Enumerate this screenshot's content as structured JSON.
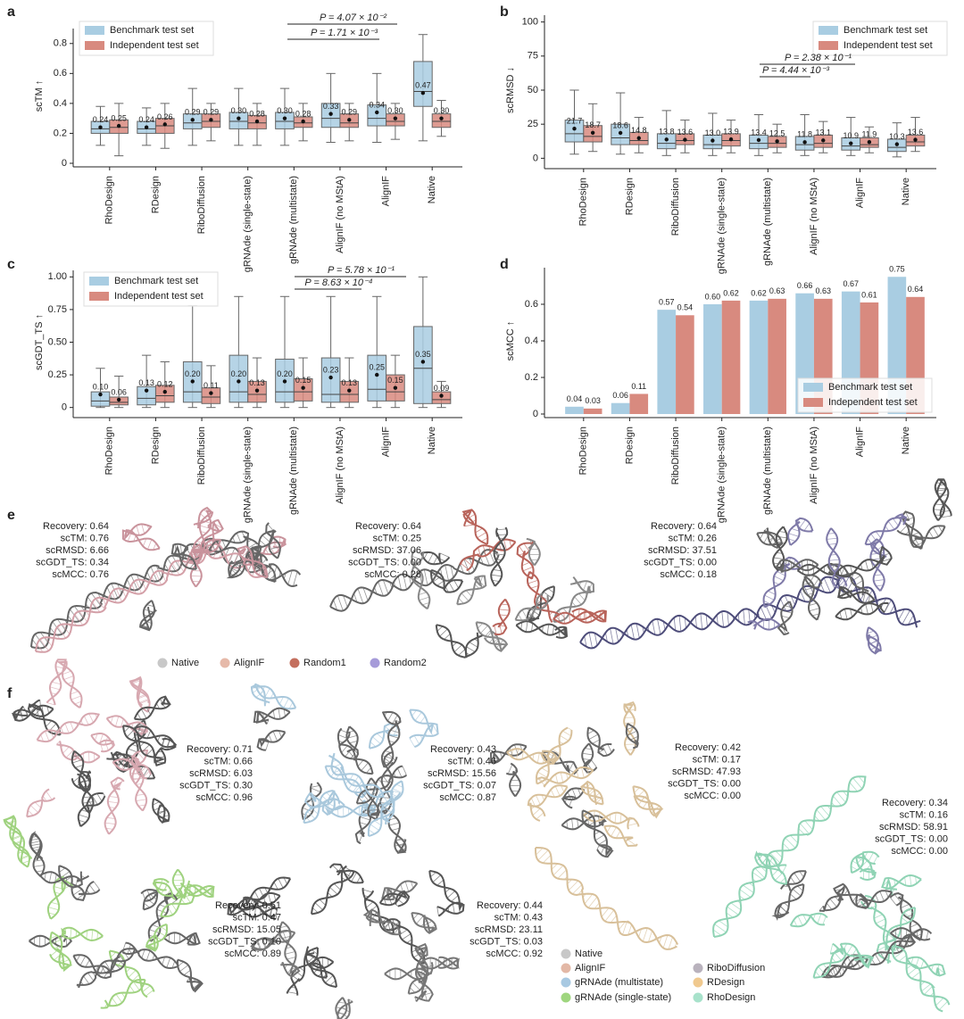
{
  "chart_data": [
    {
      "type": "box",
      "panel": "a",
      "ylabel": "scTM ↑",
      "categories": [
        "RhoDesign",
        "RDesign",
        "RiboDiffusion",
        "gRNAde (single-state)",
        "gRNAde (multistate)",
        "AlignIF (no MStA)",
        "AlignIF",
        "Native"
      ],
      "ylim": [
        0,
        0.9
      ],
      "yticks": [
        0,
        0.2,
        0.4,
        0.6,
        0.8
      ],
      "legend": "upper left",
      "annotations": [
        "P = 4.07 × 10⁻²",
        "P = 1.71 × 10⁻³"
      ],
      "series": [
        {
          "name": "Benchmark test set",
          "color": "#a9cde2",
          "values": [
            0.24,
            0.24,
            0.29,
            0.3,
            0.3,
            0.33,
            0.34,
            0.47
          ],
          "value_labels": [
            "0.24",
            "0.24",
            "0.29",
            "0.30",
            "0.30",
            "0.33",
            "0.34",
            "0.47"
          ],
          "q1": [
            0.2,
            0.2,
            0.23,
            0.23,
            0.23,
            0.24,
            0.25,
            0.38
          ],
          "median": [
            0.23,
            0.23,
            0.27,
            0.28,
            0.28,
            0.3,
            0.3,
            0.48
          ],
          "q3": [
            0.28,
            0.28,
            0.33,
            0.34,
            0.34,
            0.4,
            0.39,
            0.68
          ],
          "whisker_low": [
            0.12,
            0.12,
            0.12,
            0.12,
            0.12,
            0.14,
            0.14,
            0.15
          ],
          "whisker_high": [
            0.38,
            0.37,
            0.5,
            0.5,
            0.5,
            0.6,
            0.6,
            0.86
          ]
        },
        {
          "name": "Independent test set",
          "color": "#d88a7f",
          "values": [
            0.25,
            0.26,
            0.29,
            0.28,
            0.28,
            0.29,
            0.3,
            0.3
          ],
          "value_labels": [
            "0.25",
            "0.26",
            "0.29",
            "0.28",
            "0.28",
            "0.29",
            "0.30",
            "0.30"
          ],
          "q1": [
            0.2,
            0.2,
            0.24,
            0.23,
            0.24,
            0.24,
            0.25,
            0.24
          ],
          "median": [
            0.24,
            0.25,
            0.28,
            0.27,
            0.27,
            0.27,
            0.28,
            0.28
          ],
          "q3": [
            0.29,
            0.3,
            0.33,
            0.32,
            0.31,
            0.33,
            0.33,
            0.33
          ],
          "whisker_low": [
            0.05,
            0.1,
            0.15,
            0.12,
            0.15,
            0.15,
            0.16,
            0.18
          ],
          "whisker_high": [
            0.4,
            0.4,
            0.4,
            0.4,
            0.4,
            0.4,
            0.4,
            0.42
          ]
        }
      ]
    },
    {
      "type": "box",
      "panel": "b",
      "ylabel": "scRMSD ↓",
      "categories": [
        "RhoDesign",
        "RDesign",
        "RiboDiffusion",
        "gRNAde (single-state)",
        "gRNAde (multistate)",
        "AlignIF (no MStA)",
        "AlignIF",
        "Native"
      ],
      "ylim": [
        -5,
        105
      ],
      "yticks": [
        0,
        25,
        50,
        75,
        100
      ],
      "legend": "upper right",
      "annotations": [
        "P = 2.38 × 10⁻¹",
        "P = 4.44 × 10⁻³"
      ],
      "series": [
        {
          "name": "Benchmark test set",
          "color": "#a9cde2",
          "values": [
            21.7,
            18.6,
            13.8,
            13.0,
            13.4,
            11.8,
            10.9,
            10.3
          ],
          "value_labels": [
            "21.7",
            "18.6",
            "13.8",
            "13.0",
            "13.4",
            "11.8",
            "10.9",
            "10.3"
          ],
          "q1": [
            12,
            10,
            7,
            7,
            7,
            6,
            6,
            5
          ],
          "median": [
            18,
            15,
            11,
            10,
            11,
            10,
            9,
            8
          ],
          "q3": [
            28,
            25,
            18,
            17,
            17,
            16,
            15,
            14
          ],
          "whisker_low": [
            3,
            3,
            2,
            2,
            2,
            2,
            2,
            1
          ],
          "whisker_high": [
            50,
            48,
            35,
            33,
            32,
            32,
            30,
            26
          ]
        },
        {
          "name": "Independent test set",
          "color": "#d88a7f",
          "values": [
            18.7,
            14.8,
            13.6,
            13.9,
            12.5,
            13.1,
            11.9,
            13.6
          ],
          "value_labels": [
            "18.7",
            "14.8",
            "13.6",
            "13.9",
            "12.5",
            "13.1",
            "11.9",
            "13.6"
          ],
          "q1": [
            12,
            10,
            10,
            9,
            8,
            8,
            8,
            9
          ],
          "median": [
            16,
            13,
            13,
            13,
            11,
            11,
            10,
            12
          ],
          "q3": [
            24,
            19,
            18,
            18,
            16,
            17,
            15,
            17
          ],
          "whisker_low": [
            5,
            4,
            4,
            4,
            4,
            4,
            4,
            5
          ],
          "whisker_high": [
            40,
            30,
            28,
            28,
            25,
            27,
            23,
            30
          ]
        }
      ]
    },
    {
      "type": "box",
      "panel": "c",
      "ylabel": "scGDT_TS ↑",
      "categories": [
        "RhoDesign",
        "RDesign",
        "RiboDiffusion",
        "gRNAde (single-state)",
        "gRNAde (multistate)",
        "AlignIF (no MStA)",
        "AlignIF",
        "Native"
      ],
      "ylim": [
        -0.05,
        1.05
      ],
      "yticks": [
        0,
        0.25,
        {
          "value": 0.5,
          "label": "0.50"
        },
        0.75,
        {
          "value": 1,
          "label": "1.00"
        }
      ],
      "legend": "upper left",
      "annotations": [
        "P = 5.78 × 10⁻¹",
        "P = 8.63 × 10⁻⁴"
      ],
      "series": [
        {
          "name": "Benchmark test set",
          "color": "#a9cde2",
          "values": [
            0.1,
            0.13,
            0.2,
            0.2,
            0.2,
            0.23,
            0.25,
            0.35
          ],
          "value_labels": [
            "0.10",
            "0.13",
            "0.20",
            "0.20",
            "0.20",
            "0.23",
            "0.25",
            "0.35"
          ],
          "q1": [
            0.01,
            0.02,
            0.04,
            0.04,
            0.04,
            0.04,
            0.05,
            0.03
          ],
          "median": [
            0.05,
            0.07,
            0.12,
            0.12,
            0.12,
            0.1,
            0.14,
            0.3
          ],
          "q3": [
            0.12,
            0.16,
            0.35,
            0.4,
            0.37,
            0.38,
            0.4,
            0.62
          ],
          "whisker_low": [
            0,
            0,
            0,
            0,
            0,
            0,
            0,
            0
          ],
          "whisker_high": [
            0.3,
            0.4,
            0.78,
            0.85,
            0.85,
            0.85,
            0.85,
            1.0
          ]
        },
        {
          "name": "Independent test set",
          "color": "#d88a7f",
          "values": [
            0.06,
            0.12,
            0.11,
            0.13,
            0.15,
            0.13,
            0.15,
            0.09
          ],
          "value_labels": [
            "0.06",
            "0.12",
            "0.11",
            "0.13",
            "0.15",
            "0.13",
            "0.15",
            "0.09"
          ],
          "q1": [
            0.02,
            0.04,
            0.03,
            0.04,
            0.05,
            0.04,
            0.05,
            0.03
          ],
          "median": [
            0.04,
            0.09,
            0.08,
            0.1,
            0.12,
            0.1,
            0.12,
            0.06
          ],
          "q3": [
            0.08,
            0.17,
            0.15,
            0.2,
            0.22,
            0.2,
            0.25,
            0.12
          ],
          "whisker_low": [
            0,
            0,
            0,
            0,
            0,
            0,
            0,
            0
          ],
          "whisker_high": [
            0.24,
            0.35,
            0.32,
            0.38,
            0.38,
            0.38,
            0.4,
            0.2
          ]
        }
      ]
    },
    {
      "type": "bar",
      "panel": "d",
      "ylabel": "scMCC ↑",
      "categories": [
        "RhoDesign",
        "RDesign",
        "RiboDiffusion",
        "gRNAde (single-state)",
        "gRNAde (multistate)",
        "AlignIF (no MStA)",
        "AlignIF",
        "Native"
      ],
      "ylim": [
        0,
        0.8
      ],
      "yticks": [
        0,
        0.2,
        0.4,
        0.6
      ],
      "legend": "lower right",
      "series": [
        {
          "name": "Benchmark test set",
          "color": "#a9cde2",
          "values": [
            0.04,
            0.06,
            0.57,
            0.6,
            0.62,
            0.66,
            0.67,
            0.75
          ],
          "value_labels": [
            "0.04",
            "0.06",
            "0.57",
            "0.60",
            "0.62",
            "0.66",
            "0.67",
            "0.75"
          ]
        },
        {
          "name": "Independent test set",
          "color": "#d88a7f",
          "values": [
            0.03,
            0.11,
            0.54,
            0.62,
            0.63,
            0.63,
            0.61,
            0.64
          ],
          "value_labels": [
            "0.03",
            "0.11",
            "0.54",
            "0.62",
            "0.63",
            "0.63",
            "0.61",
            "0.64"
          ]
        }
      ]
    }
  ],
  "figure_panels": [
    {
      "label": "e",
      "metric_blocks": [
        [
          "Recovery: 0.64",
          "scTM: 0.76",
          "scRMSD: 6.66",
          "scGDT_TS: 0.34",
          "scMCC: 0.76"
        ],
        [
          "Recovery: 0.64",
          "scTM: 0.25",
          "scRMSD: 37.06",
          "scGDT_TS: 0.00",
          "scMCC: 0.28"
        ],
        [
          "Recovery: 0.64",
          "scTM: 0.26",
          "scRMSD: 37.51",
          "scGDT_TS: 0.00",
          "scMCC: 0.18"
        ]
      ],
      "legend": [
        {
          "name": "Native",
          "color": "#c8c8c8"
        },
        {
          "name": "AlignIF",
          "color": "#e6b9a9"
        },
        {
          "name": "Random1",
          "color": "#c46f5e"
        },
        {
          "name": "Random2",
          "color": "#a69bd9"
        }
      ]
    },
    {
      "label": "f",
      "metric_blocks": [
        [
          "Recovery: 0.71",
          "scTM: 0.66",
          "scRMSD: 6.03",
          "scGDT_TS: 0.30",
          "scMCC: 0.96"
        ],
        [
          "Recovery: 0.43",
          "scTM: 0.46",
          "scRMSD: 15.56",
          "scGDT_TS: 0.07",
          "scMCC: 0.87"
        ],
        [
          "Recovery: 0.42",
          "scTM: 0.17",
          "scRMSD: 47.93",
          "scGDT_TS: 0.00",
          "scMCC: 0.00"
        ],
        [
          "Recovery: 0.34",
          "scTM: 0.16",
          "scRMSD: 58.91",
          "scGDT_TS: 0.00",
          "scMCC: 0.00"
        ],
        [
          "Recovery: 0.51",
          "scTM: 0.47",
          "scRMSD: 15.05",
          "scGDT_TS: 0.10",
          "scMCC: 0.89"
        ],
        [
          "Recovery: 0.44",
          "scTM: 0.43",
          "scRMSD: 23.11",
          "scGDT_TS: 0.03",
          "scMCC: 0.92"
        ]
      ],
      "legend": [
        {
          "name": "Native",
          "color": "#c8c8c8"
        },
        {
          "name": "AlignIF",
          "color": "#e3b8a6"
        },
        {
          "name": "gRNAde (multistate)",
          "color": "#a8c9e2"
        },
        {
          "name": "gRNAde (single-state)",
          "color": "#9fd67f"
        },
        {
          "name": "RiboDiffusion",
          "color": "#b9b2bd"
        },
        {
          "name": "RDesign",
          "color": "#f0c98f"
        },
        {
          "name": "RhoDesign",
          "color": "#a8e2cb"
        }
      ]
    }
  ]
}
